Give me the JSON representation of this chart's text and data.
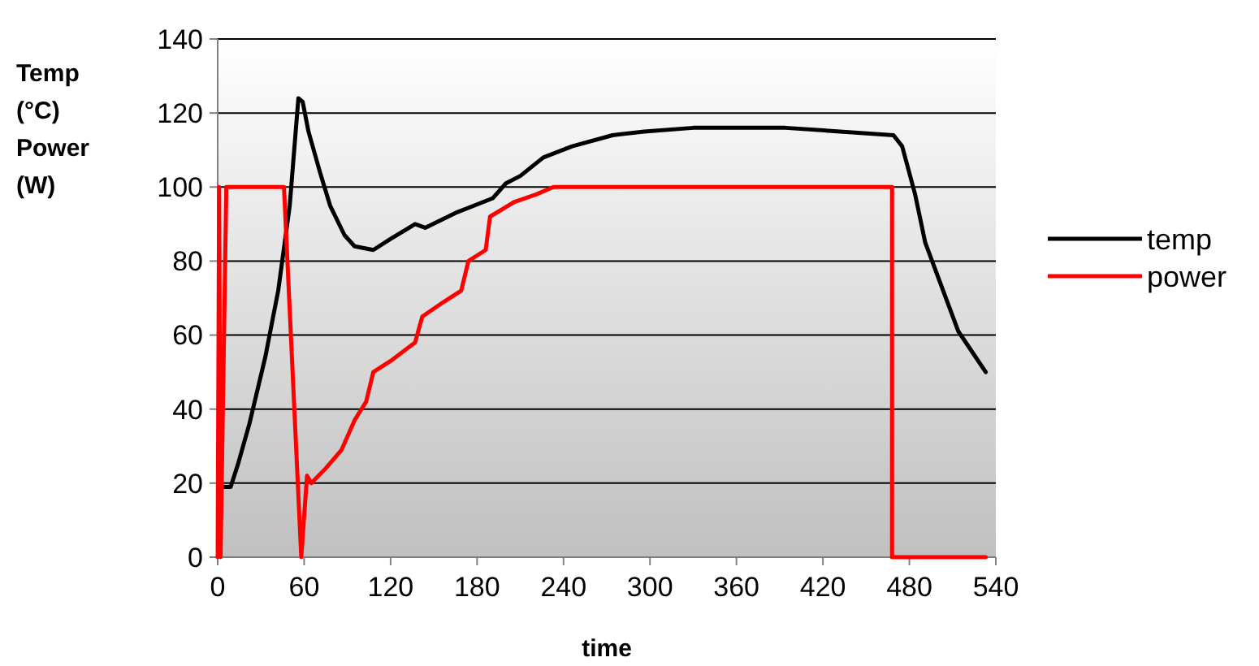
{
  "chart_data": {
    "type": "line",
    "xlabel": "time",
    "ylabel": "Temp (°C) Power (W)",
    "xlim": [
      0,
      540
    ],
    "xticks": [
      0,
      60,
      120,
      180,
      240,
      300,
      360,
      420,
      480,
      540
    ],
    "ylim": [
      0,
      140
    ],
    "yticks": [
      0,
      20,
      40,
      60,
      80,
      100,
      120,
      140
    ],
    "grid": "y",
    "legend": "right",
    "marker": "none",
    "line_style": "solid",
    "series": [
      {
        "name": "temp",
        "color": "#000000",
        "x": [
          3,
          9,
          14,
          22,
          33,
          42,
          50,
          56,
          59,
          63,
          71,
          78,
          88,
          95,
          108,
          120,
          137,
          144,
          165,
          191,
          200,
          210,
          226,
          246,
          274,
          296,
          330,
          394,
          469,
          475,
          484,
          491,
          514,
          533
        ],
        "values": [
          19,
          19,
          25,
          36,
          54,
          72,
          95,
          124,
          123,
          115,
          104,
          95,
          87,
          84,
          83,
          86,
          90,
          89,
          93,
          97,
          101,
          103,
          108,
          111,
          114,
          115,
          116,
          116,
          114,
          111,
          98,
          85,
          61,
          50
        ]
      },
      {
        "name": "power",
        "color": "#ff0000",
        "x": [
          0,
          1,
          2,
          6,
          46,
          58,
          62,
          65,
          75,
          86,
          95,
          103,
          108,
          120,
          137,
          142,
          157,
          169,
          174,
          186,
          189,
          206,
          221,
          233,
          468,
          468,
          533
        ],
        "values": [
          0,
          100,
          0,
          100,
          100,
          0,
          22,
          20,
          24,
          29,
          37,
          42,
          50,
          53,
          58,
          65,
          69,
          72,
          80,
          83,
          92,
          96,
          98,
          100,
          100,
          0,
          0
        ]
      }
    ]
  }
}
